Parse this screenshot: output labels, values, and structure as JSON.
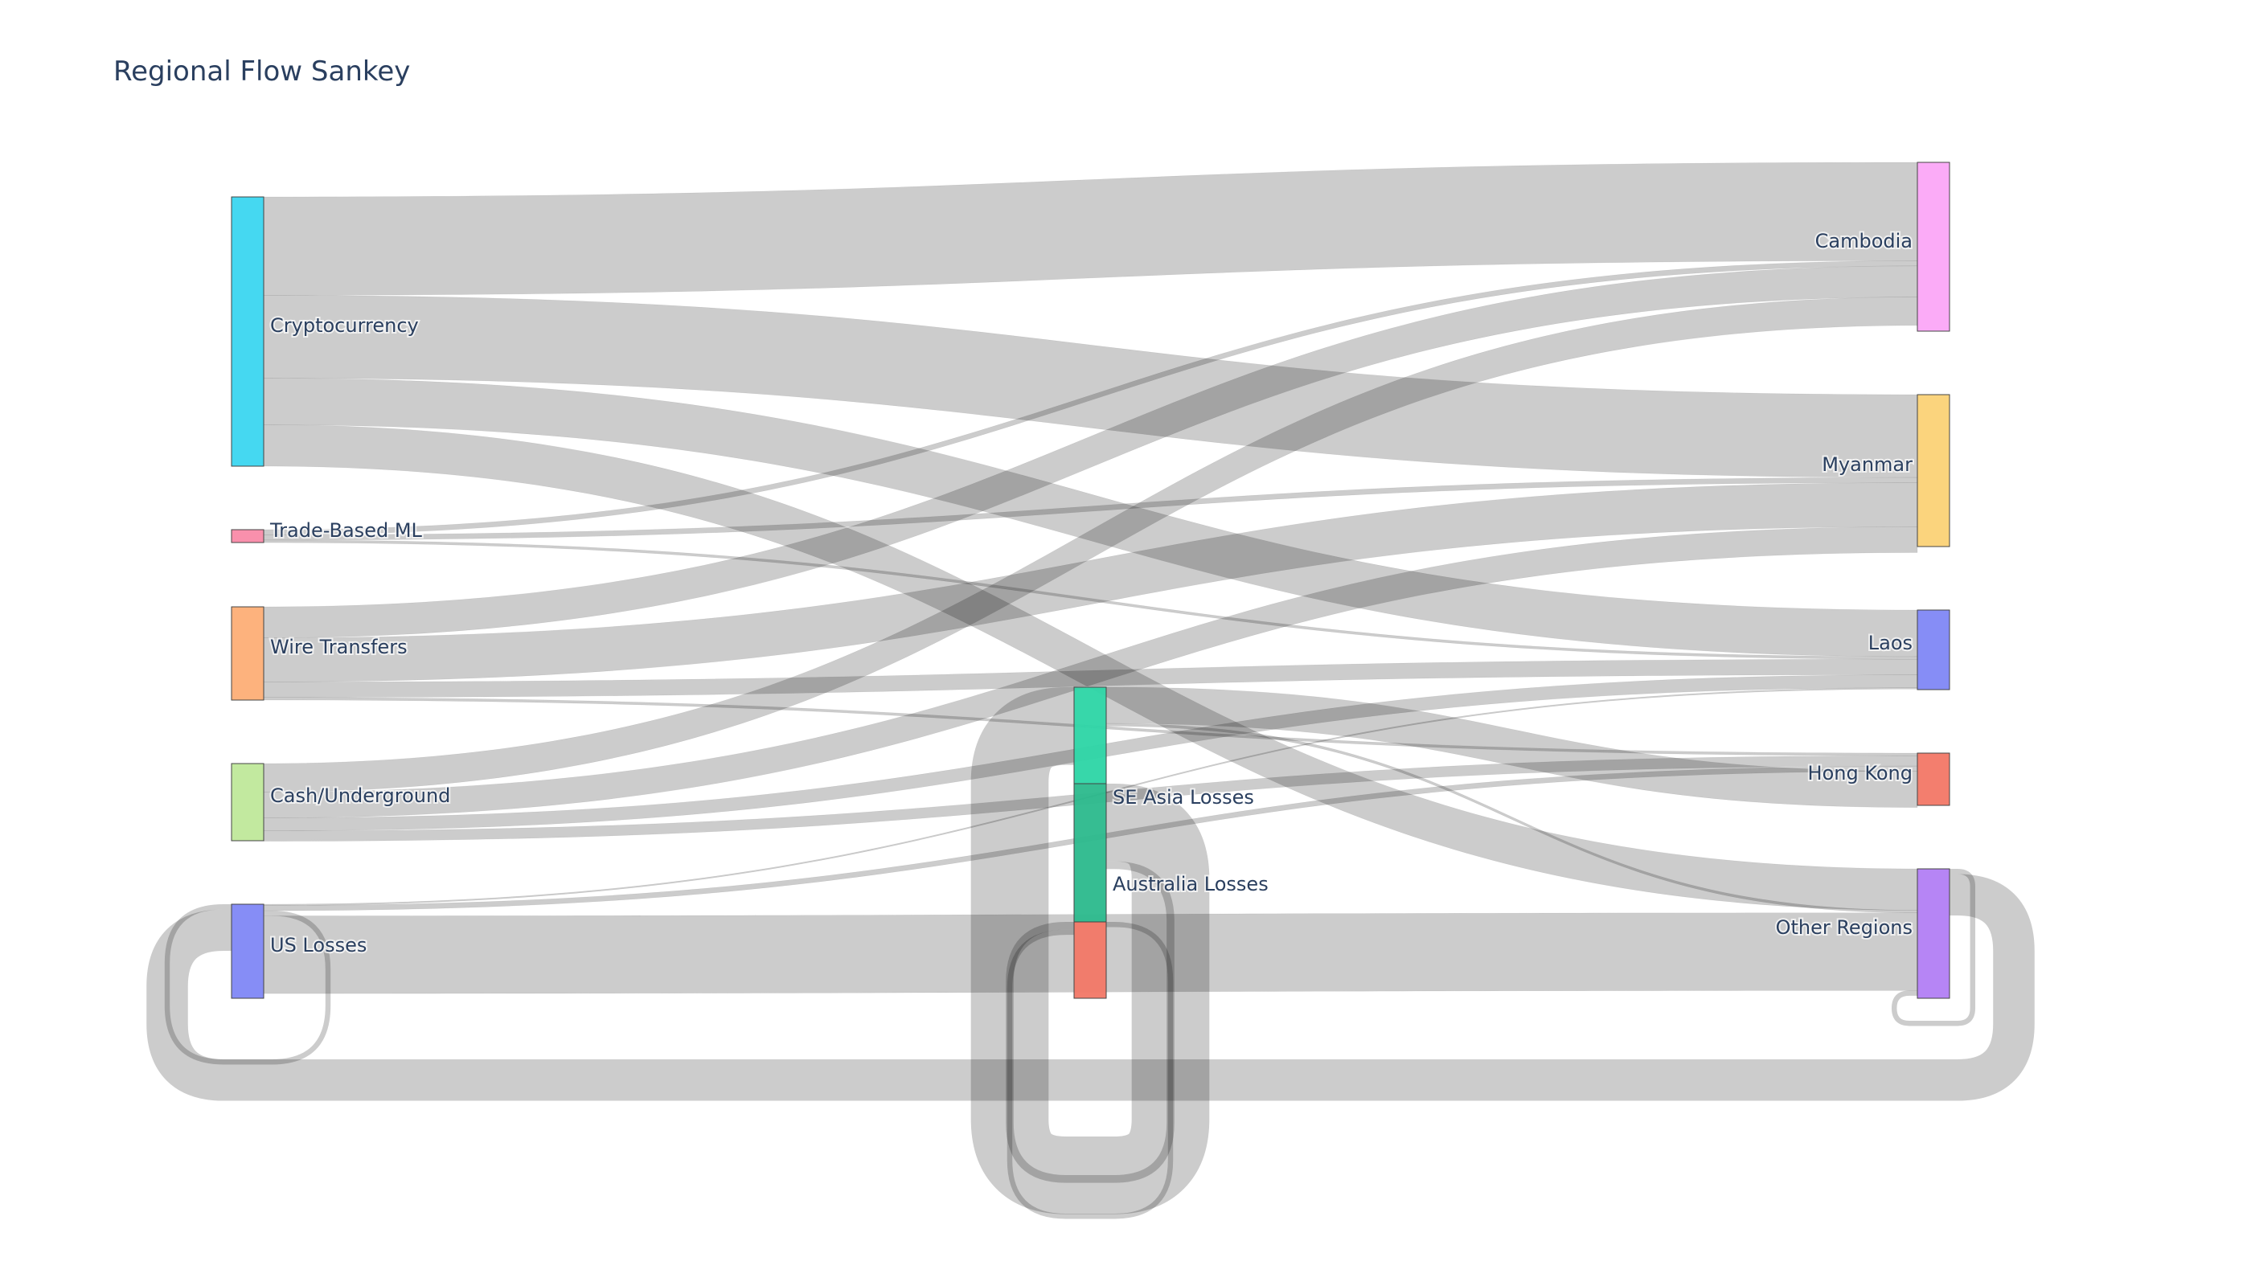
{
  "chart_data": {
    "type": "sankey",
    "title": "Regional Flow Sankey",
    "nodes": [
      {
        "id": "crypto",
        "label": "Cryptocurrency",
        "color": "#3bd6f0"
      },
      {
        "id": "tbml",
        "label": "Trade-Based ML",
        "color": "#f98aa8"
      },
      {
        "id": "wire",
        "label": "Wire Transfers",
        "color": "#fdae76"
      },
      {
        "id": "cash",
        "label": "Cash/Underground",
        "color": "#bfe89a"
      },
      {
        "id": "us",
        "label": "US Losses",
        "color": "#7f87f5"
      },
      {
        "id": "sea",
        "label": "SE Asia Losses",
        "color": "#2cd5a5"
      },
      {
        "id": "aus",
        "label": "Australia Losses",
        "color": "#2bb98c"
      },
      {
        "id": "aus2",
        "label": "",
        "color": "#f27766"
      },
      {
        "id": "cambodia",
        "label": "Cambodia",
        "color": "#fba6f7"
      },
      {
        "id": "myanmar",
        "label": "Myanmar",
        "color": "#fbd276"
      },
      {
        "id": "laos",
        "label": "Laos",
        "color": "#7f87f5"
      },
      {
        "id": "hk",
        "label": "Hong Kong",
        "color": "#f27766"
      },
      {
        "id": "other",
        "label": "Other Regions",
        "color": "#b27ef4"
      }
    ],
    "links": [
      {
        "source": "crypto",
        "target": "cambodia",
        "value": 38
      },
      {
        "source": "crypto",
        "target": "myanmar",
        "value": 32
      },
      {
        "source": "crypto",
        "target": "laos",
        "value": 18
      },
      {
        "source": "crypto",
        "target": "other",
        "value": 16
      },
      {
        "source": "tbml",
        "target": "cambodia",
        "value": 2
      },
      {
        "source": "tbml",
        "target": "myanmar",
        "value": 2
      },
      {
        "source": "tbml",
        "target": "laos",
        "value": 1
      },
      {
        "source": "wire",
        "target": "cambodia",
        "value": 12
      },
      {
        "source": "wire",
        "target": "myanmar",
        "value": 17
      },
      {
        "source": "wire",
        "target": "laos",
        "value": 6
      },
      {
        "source": "wire",
        "target": "hk",
        "value": 1
      },
      {
        "source": "cash",
        "target": "cambodia",
        "value": 11
      },
      {
        "source": "cash",
        "target": "myanmar",
        "value": 10
      },
      {
        "source": "cash",
        "target": "laos",
        "value": 5
      },
      {
        "source": "cash",
        "target": "hk",
        "value": 4
      },
      {
        "source": "us",
        "target": "laos",
        "value": 0.5
      },
      {
        "source": "us",
        "target": "hk",
        "value": 2
      },
      {
        "source": "sea",
        "target": "hk",
        "value": 14
      },
      {
        "source": "sea",
        "target": "other",
        "value": 1
      },
      {
        "source": "us",
        "target": "us",
        "value": 2
      },
      {
        "source": "us",
        "target": "other",
        "value": 30
      },
      {
        "source": "aus",
        "target": "sea",
        "value": 30
      },
      {
        "source": "aus",
        "target": "aus2",
        "value": 3
      },
      {
        "source": "aus2",
        "target": "aus2",
        "value": 2
      },
      {
        "source": "other",
        "target": "other",
        "value": 2
      },
      {
        "source": "other",
        "target": "us",
        "value": 16
      }
    ]
  }
}
